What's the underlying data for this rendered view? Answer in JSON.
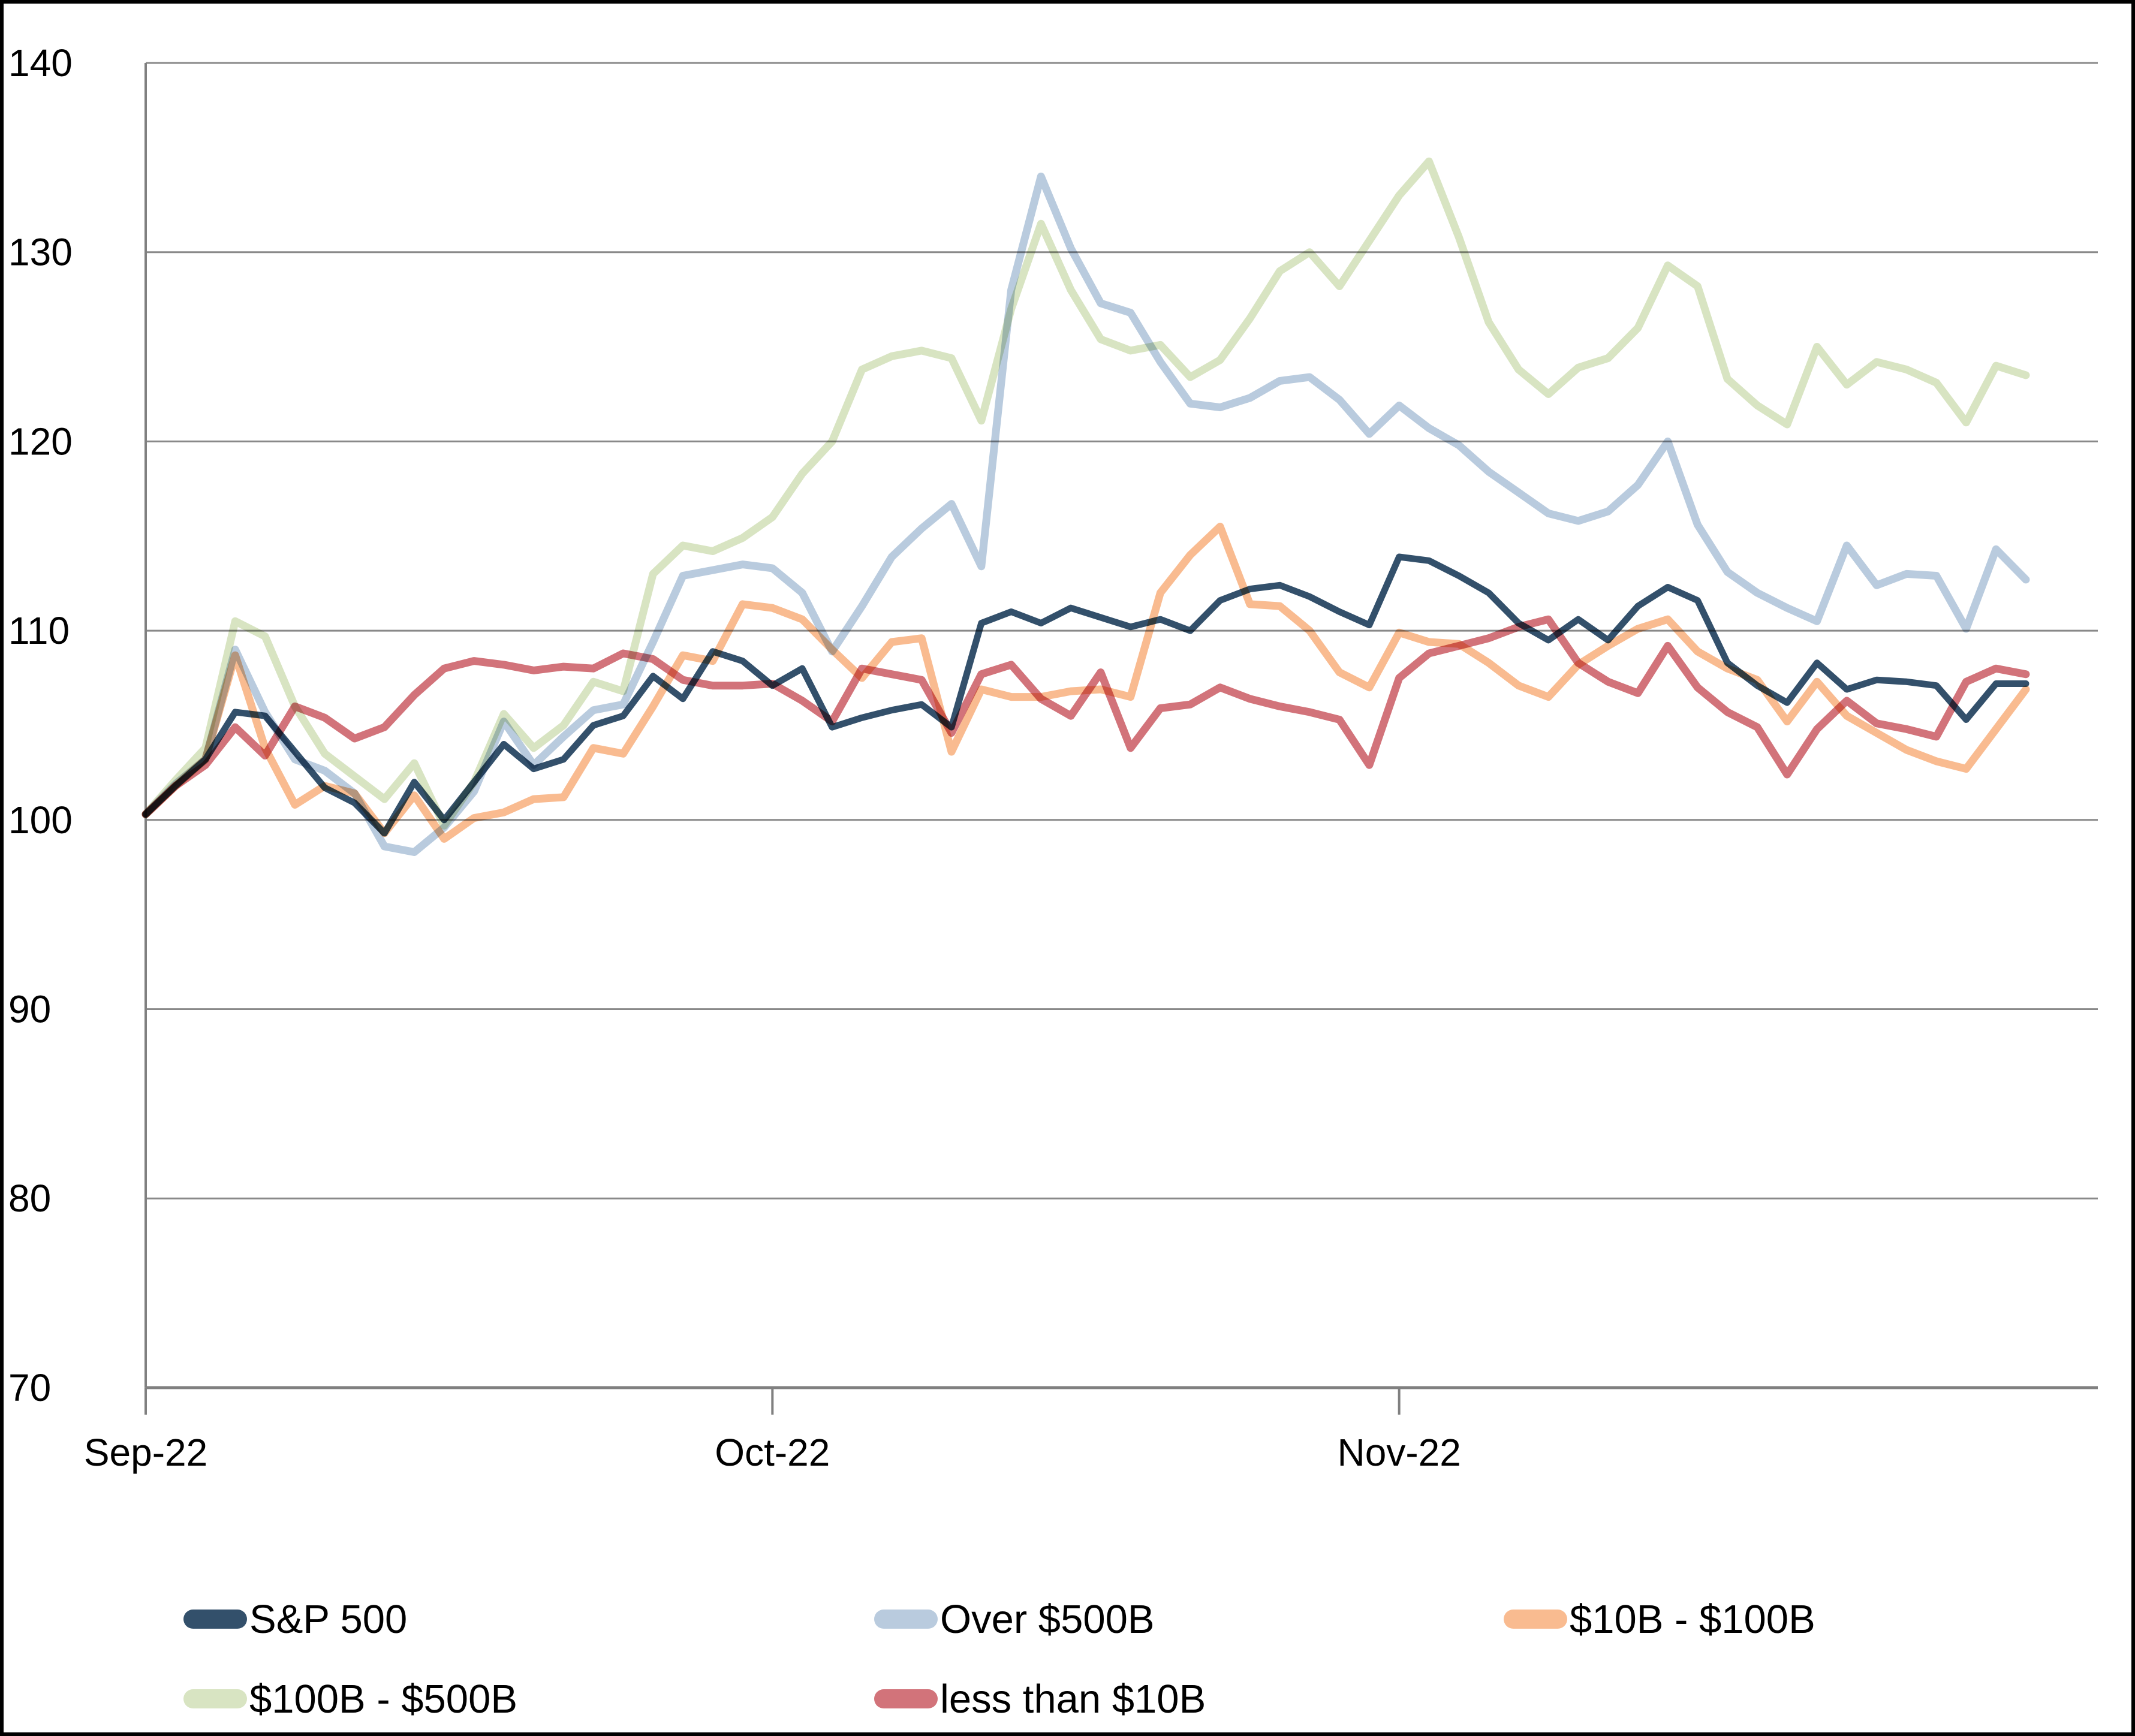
{
  "chart_data": {
    "type": "line",
    "title": "",
    "xlabel": "",
    "ylabel": "",
    "ylim": [
      70,
      140
    ],
    "yticks": [
      70,
      80,
      90,
      100,
      110,
      120,
      130,
      140
    ],
    "grid": "horizontal",
    "x_range_days": 64,
    "x_tick_positions": [
      0,
      21,
      42
    ],
    "x_tick_labels": [
      "Sep-22",
      "Oct-22",
      "Nov-22"
    ],
    "legend_position": "bottom",
    "series": [
      {
        "name": "S&P 500",
        "color": "#33506b",
        "width": 11,
        "values": [
          100.3,
          101.8,
          103.2,
          105.7,
          105.5,
          103.6,
          101.7,
          100.9,
          99.3,
          102.0,
          100.0,
          102.0,
          104.0,
          102.7,
          103.2,
          105.0,
          105.5,
          107.6,
          106.4,
          108.9,
          108.4,
          107.1,
          108.0,
          104.9,
          105.4,
          105.8,
          106.1,
          104.9,
          110.4,
          111.0,
          110.4,
          111.2,
          110.7,
          110.2,
          110.6,
          110.0,
          111.6,
          112.2,
          112.4,
          111.8,
          111.0,
          110.3,
          113.9,
          113.7,
          112.9,
          112.0,
          110.4,
          109.5,
          110.6,
          109.5,
          111.3,
          112.3,
          111.6,
          108.3,
          107.1,
          106.2,
          108.3,
          106.9,
          107.4,
          107.3,
          107.1,
          105.3,
          107.2,
          107.2
        ]
      },
      {
        "name": "Over $500B",
        "color": "#b9cbde",
        "width": 13,
        "values": [
          100.3,
          101.9,
          103.2,
          109.0,
          105.7,
          103.2,
          102.6,
          101.4,
          98.6,
          98.3,
          99.6,
          101.5,
          105.2,
          102.9,
          104.4,
          105.8,
          106.1,
          109.4,
          112.9,
          113.2,
          113.5,
          113.3,
          112.0,
          108.9,
          111.3,
          113.9,
          115.4,
          116.7,
          113.4,
          128.0,
          134.0,
          130.2,
          127.3,
          126.8,
          124.2,
          122.0,
          121.8,
          122.3,
          123.2,
          123.4,
          122.2,
          120.4,
          121.9,
          120.7,
          119.8,
          118.4,
          117.3,
          116.2,
          115.8,
          116.3,
          117.7,
          120.0,
          115.6,
          113.1,
          112.0,
          111.2,
          110.5,
          114.5,
          112.4,
          113.0,
          112.9,
          110.1,
          114.3,
          112.7
        ]
      },
      {
        "name": "$10B - $100B",
        "color": "#f9bb90",
        "width": 13,
        "values": [
          100.3,
          101.8,
          103.2,
          108.7,
          103.8,
          100.8,
          101.8,
          101.4,
          99.3,
          101.3,
          99.0,
          100.1,
          100.4,
          101.1,
          101.2,
          103.8,
          103.5,
          106.0,
          108.7,
          108.4,
          111.4,
          111.2,
          110.6,
          109.0,
          107.5,
          109.4,
          109.6,
          103.6,
          106.9,
          106.5,
          106.5,
          106.8,
          106.9,
          106.5,
          112.0,
          114.0,
          115.5,
          111.4,
          111.3,
          110.0,
          107.8,
          107.0,
          109.9,
          109.4,
          109.3,
          108.3,
          107.1,
          106.5,
          108.2,
          109.2,
          110.1,
          110.6,
          108.9,
          108.0,
          107.4,
          105.2,
          107.3,
          105.5,
          104.6,
          103.7,
          103.1,
          102.7,
          104.8,
          106.9
        ]
      },
      {
        "name": "$100B - $500B",
        "color": "#d8e4c2",
        "width": 13,
        "values": [
          100.3,
          102.1,
          103.8,
          110.5,
          109.7,
          106.0,
          103.5,
          102.3,
          101.1,
          103.0,
          99.7,
          102.0,
          105.6,
          103.8,
          105.0,
          107.3,
          106.8,
          113.0,
          114.5,
          114.2,
          114.9,
          116.0,
          118.3,
          120.0,
          123.8,
          124.5,
          124.8,
          124.4,
          121.1,
          127.0,
          131.5,
          128.0,
          125.4,
          124.8,
          125.1,
          123.4,
          124.3,
          126.5,
          129.0,
          130.0,
          128.2,
          130.6,
          133.0,
          134.8,
          130.8,
          126.3,
          123.8,
          122.5,
          123.9,
          124.4,
          126.0,
          129.3,
          128.2,
          123.3,
          121.9,
          120.9,
          125.0,
          123.0,
          124.2,
          123.8,
          123.1,
          121.0,
          124.0,
          123.5
        ]
      },
      {
        "name": "less than $10B",
        "color": "#d2737a",
        "width": 13,
        "values": [
          100.3,
          101.8,
          102.9,
          104.9,
          103.4,
          106.0,
          105.4,
          104.3,
          104.9,
          106.6,
          108.0,
          108.4,
          108.2,
          107.9,
          108.1,
          108.0,
          108.8,
          108.5,
          107.4,
          107.1,
          107.1,
          107.2,
          106.3,
          105.2,
          108.0,
          107.7,
          107.4,
          104.6,
          107.7,
          108.2,
          106.4,
          105.5,
          107.8,
          103.8,
          105.9,
          106.1,
          107.0,
          106.4,
          106.0,
          105.7,
          105.3,
          102.9,
          107.5,
          108.8,
          109.2,
          109.6,
          110.2,
          110.6,
          108.3,
          107.3,
          106.7,
          109.2,
          107.0,
          105.7,
          104.9,
          102.4,
          104.8,
          106.3,
          105.1,
          104.8,
          104.4,
          107.3,
          108.0,
          107.7
        ]
      }
    ],
    "legend_rows": [
      [
        0,
        1,
        2
      ],
      [
        3,
        4
      ]
    ]
  }
}
